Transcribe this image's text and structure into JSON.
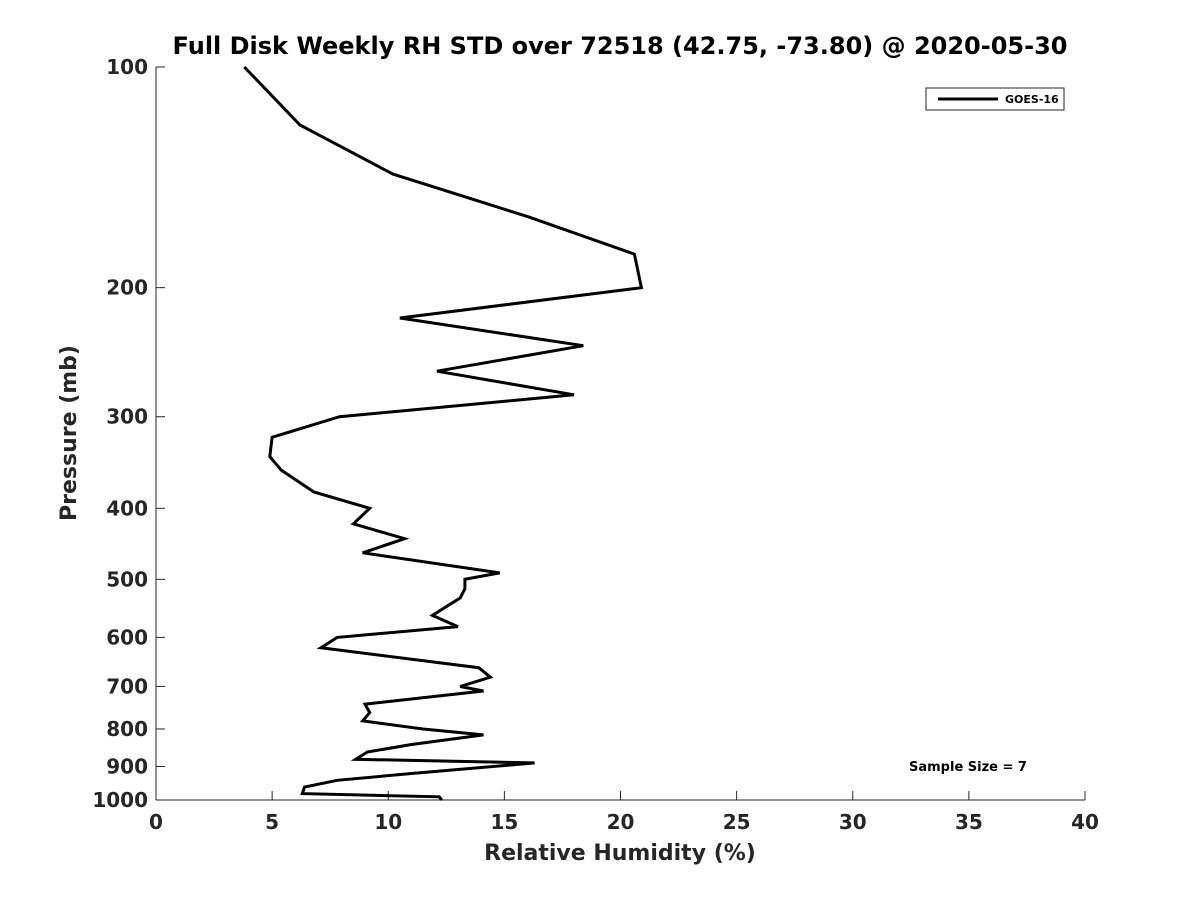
{
  "chart_data": {
    "type": "line",
    "title": "Full Disk Weekly RH STD over 72518 (42.75, -73.80) @ 2020-05-30",
    "xlabel": "Relative Humidity (%)",
    "ylabel": "Pressure (mb)",
    "xlim": [
      0,
      40
    ],
    "ylim": [
      100,
      1000
    ],
    "yscale": "log",
    "y_reversed": true,
    "xticks": [
      0,
      5,
      10,
      15,
      20,
      25,
      30,
      35,
      40
    ],
    "xtick_labels": [
      "0",
      "5",
      "10",
      "15",
      "20",
      "25",
      "30",
      "35",
      "40"
    ],
    "yticks": [
      100,
      200,
      300,
      400,
      500,
      600,
      700,
      800,
      900,
      1000
    ],
    "ytick_labels": [
      "100",
      "200",
      "300",
      "400",
      "500",
      "600",
      "700",
      "800",
      "900",
      "1000"
    ],
    "grid": false,
    "legend_position": "top-right",
    "series": [
      {
        "name": "GOES-16",
        "color": "#000000",
        "x": [
          3.8,
          6.2,
          10.2,
          16.0,
          20.6,
          20.9,
          10.5,
          18.4,
          12.1,
          18.0,
          7.9,
          5.0,
          4.9,
          5.4,
          6.8,
          9.2,
          8.5,
          10.7,
          8.9,
          14.8,
          13.3,
          13.3,
          13.1,
          11.9,
          13.0,
          7.8,
          7.1,
          13.9,
          14.4,
          13.1,
          14.1,
          9.0,
          9.2,
          8.9,
          11.5,
          14.1,
          11.0,
          9.1,
          8.6,
          16.3,
          11.0,
          7.8,
          6.4,
          6.3,
          12.2,
          12.3
        ],
        "y": [
          100,
          120,
          140,
          160,
          180,
          200,
          220,
          240,
          260,
          280,
          300,
          320,
          340,
          355,
          380,
          400,
          420,
          440,
          460,
          490,
          500,
          515,
          530,
          560,
          580,
          600,
          620,
          660,
          680,
          700,
          710,
          740,
          760,
          780,
          800,
          815,
          840,
          860,
          880,
          890,
          920,
          940,
          960,
          980,
          990,
          1000
        ]
      }
    ],
    "annotations": [
      "Sample Size = 7"
    ]
  }
}
